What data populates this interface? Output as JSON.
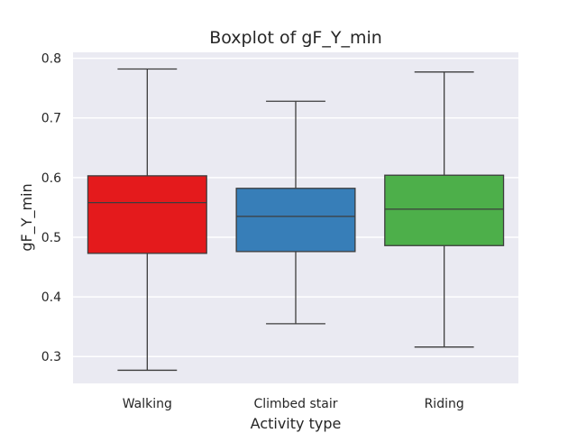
{
  "chart_data": {
    "type": "boxplot",
    "title": "Boxplot of gF_Y_min",
    "xlabel": "Activity type",
    "ylabel": "gF_Y_min",
    "ylim": [
      0.255,
      0.81
    ],
    "yticks": [
      0.3,
      0.4,
      0.5,
      0.6,
      0.7,
      0.8
    ],
    "ytick_labels": [
      "0.3",
      "0.4",
      "0.5",
      "0.6",
      "0.7",
      "0.8"
    ],
    "grid": true,
    "categories": [
      "Walking",
      "Climbed stair",
      "Riding"
    ],
    "boxes": [
      {
        "category": "Walking",
        "whisker_low": 0.277,
        "q1": 0.473,
        "median": 0.558,
        "q3": 0.603,
        "whisker_high": 0.782,
        "color": "#e41a1c"
      },
      {
        "category": "Climbed stair",
        "whisker_low": 0.355,
        "q1": 0.476,
        "median": 0.535,
        "q3": 0.582,
        "whisker_high": 0.728,
        "color": "#377eb8"
      },
      {
        "category": "Riding",
        "whisker_low": 0.316,
        "q1": 0.486,
        "median": 0.547,
        "q3": 0.604,
        "whisker_high": 0.777,
        "color": "#4daf4a"
      }
    ],
    "background_color": "#eaeaf2",
    "line_color": "#3d3d3d"
  }
}
